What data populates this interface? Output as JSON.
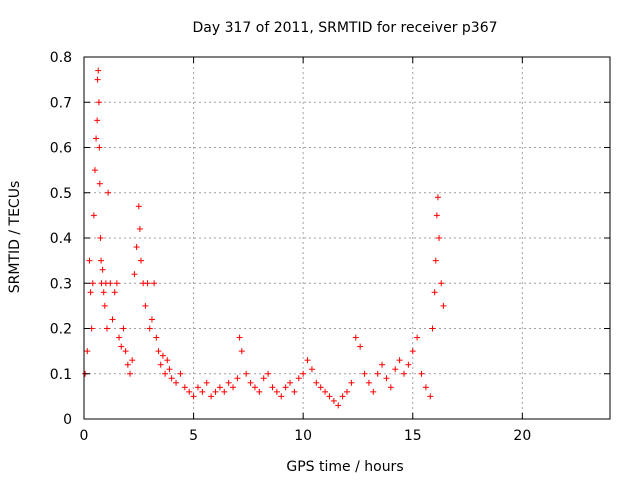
{
  "chart_data": {
    "type": "scatter",
    "title": "Day 317 of 2011, SRMTID for receiver p367",
    "xlabel": "GPS time / hours",
    "ylabel": "SRMTID / TECUs",
    "xlim": [
      0,
      24
    ],
    "ylim": [
      0,
      0.8
    ],
    "xticks": [
      0,
      5,
      10,
      15,
      20
    ],
    "xtick_labels": [
      "0",
      "5",
      "10",
      "15",
      "20"
    ],
    "yticks": [
      0,
      0.1,
      0.2,
      0.3,
      0.4,
      0.5,
      0.6,
      0.7,
      0.8
    ],
    "ytick_labels": [
      "0",
      "0.1",
      "0.2",
      "0.3",
      "0.4",
      "0.5",
      "0.6",
      "0.7",
      "0.8"
    ],
    "grid": true,
    "marker": "+",
    "color": "#ff0000",
    "series": [
      {
        "name": "SRMTID",
        "x": [
          0.05,
          0.15,
          0.25,
          0.3,
          0.35,
          0.4,
          0.45,
          0.5,
          0.55,
          0.6,
          0.62,
          0.65,
          0.68,
          0.7,
          0.72,
          0.75,
          0.78,
          0.8,
          0.85,
          0.9,
          0.95,
          1.0,
          1.05,
          1.1,
          1.2,
          1.3,
          1.4,
          1.5,
          1.6,
          1.7,
          1.8,
          1.9,
          2.0,
          2.1,
          2.2,
          2.3,
          2.4,
          2.5,
          2.55,
          2.6,
          2.7,
          2.8,
          2.9,
          3.0,
          3.1,
          3.2,
          3.3,
          3.4,
          3.5,
          3.6,
          3.7,
          3.8,
          3.9,
          4.0,
          4.2,
          4.4,
          4.6,
          4.8,
          5.0,
          5.2,
          5.4,
          5.6,
          5.8,
          6.0,
          6.2,
          6.4,
          6.6,
          6.8,
          7.0,
          7.1,
          7.2,
          7.4,
          7.6,
          7.8,
          8.0,
          8.2,
          8.4,
          8.6,
          8.8,
          9.0,
          9.2,
          9.4,
          9.6,
          9.8,
          10.0,
          10.2,
          10.4,
          10.6,
          10.8,
          11.0,
          11.2,
          11.4,
          11.6,
          11.8,
          12.0,
          12.2,
          12.4,
          12.6,
          12.8,
          13.0,
          13.2,
          13.4,
          13.6,
          13.8,
          14.0,
          14.2,
          14.4,
          14.6,
          14.8,
          15.0,
          15.2,
          15.4,
          15.6,
          15.8,
          15.9,
          16.0,
          16.05,
          16.1,
          16.15,
          16.2,
          16.3,
          16.4
        ],
        "y": [
          0.1,
          0.15,
          0.35,
          0.28,
          0.2,
          0.3,
          0.45,
          0.55,
          0.62,
          0.66,
          0.75,
          0.77,
          0.7,
          0.6,
          0.52,
          0.4,
          0.35,
          0.3,
          0.33,
          0.28,
          0.25,
          0.3,
          0.2,
          0.5,
          0.3,
          0.22,
          0.28,
          0.3,
          0.18,
          0.16,
          0.2,
          0.15,
          0.12,
          0.1,
          0.13,
          0.32,
          0.38,
          0.47,
          0.42,
          0.35,
          0.3,
          0.25,
          0.3,
          0.2,
          0.22,
          0.3,
          0.18,
          0.15,
          0.12,
          0.14,
          0.1,
          0.13,
          0.11,
          0.09,
          0.08,
          0.1,
          0.07,
          0.06,
          0.05,
          0.07,
          0.06,
          0.08,
          0.05,
          0.06,
          0.07,
          0.06,
          0.08,
          0.07,
          0.09,
          0.18,
          0.15,
          0.1,
          0.08,
          0.07,
          0.06,
          0.09,
          0.1,
          0.07,
          0.06,
          0.05,
          0.07,
          0.08,
          0.06,
          0.09,
          0.1,
          0.13,
          0.11,
          0.08,
          0.07,
          0.06,
          0.05,
          0.04,
          0.03,
          0.05,
          0.06,
          0.08,
          0.18,
          0.16,
          0.1,
          0.08,
          0.06,
          0.1,
          0.12,
          0.09,
          0.07,
          0.11,
          0.13,
          0.1,
          0.12,
          0.15,
          0.18,
          0.1,
          0.07,
          0.05,
          0.2,
          0.28,
          0.35,
          0.45,
          0.49,
          0.4,
          0.3,
          0.25
        ]
      }
    ]
  }
}
